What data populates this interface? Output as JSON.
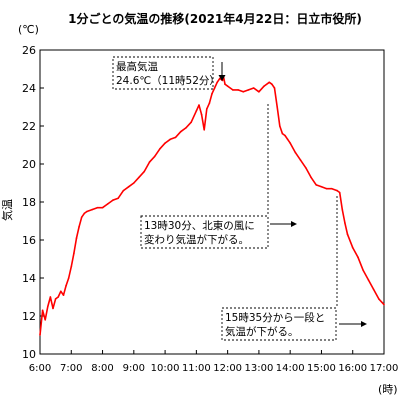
{
  "chart_data": {
    "type": "line",
    "title": "1分ごとの気温の推移(2021年4月22日：日立市役所)",
    "ylabel": "気温",
    "yunit": "(℃)",
    "xunit": "(時)",
    "ylim": [
      10,
      26
    ],
    "yticks": [
      10,
      12,
      14,
      16,
      18,
      20,
      22,
      24,
      26
    ],
    "xlim": [
      6,
      17
    ],
    "xticks": [
      "6:00",
      "7:00",
      "8:00",
      "9:00",
      "10:00",
      "11:00",
      "12:00",
      "13:00",
      "14:00",
      "15:00",
      "16:00",
      "17:00"
    ],
    "grid": false,
    "line_color": "#ff0000",
    "series": [
      {
        "x": [
          "6:00",
          "6:05",
          "6:10",
          "6:15",
          "6:20",
          "6:25",
          "6:30",
          "6:35",
          "6:40",
          "6:45",
          "6:50",
          "6:55",
          "7:00",
          "7:05",
          "7:10",
          "7:15",
          "7:20",
          "7:25",
          "7:30",
          "7:40",
          "7:50",
          "8:00",
          "8:10",
          "8:20",
          "8:30",
          "8:40",
          "8:50",
          "9:00",
          "9:10",
          "9:20",
          "9:30",
          "9:40",
          "9:50",
          "10:00",
          "10:10",
          "10:20",
          "10:30",
          "10:40",
          "10:50",
          "11:00",
          "11:05",
          "11:10",
          "11:15",
          "11:20",
          "11:25",
          "11:30",
          "11:35",
          "11:40",
          "11:45",
          "11:50",
          "11:52",
          "11:55",
          "12:00",
          "12:10",
          "12:20",
          "12:30",
          "12:40",
          "12:50",
          "13:00",
          "13:10",
          "13:20",
          "13:25",
          "13:30",
          "13:35",
          "13:40",
          "13:45",
          "13:50",
          "13:55",
          "14:00",
          "14:10",
          "14:20",
          "14:30",
          "14:40",
          "14:50",
          "15:00",
          "15:10",
          "15:20",
          "15:30",
          "15:35",
          "15:40",
          "15:45",
          "15:50",
          "16:00",
          "16:10",
          "16:20",
          "16:30",
          "16:40",
          "16:50",
          "17:00"
        ],
        "y": [
          11.0,
          12.3,
          11.8,
          12.5,
          13.0,
          12.4,
          12.9,
          13.0,
          13.3,
          13.1,
          13.6,
          14.0,
          14.6,
          15.3,
          16.1,
          16.7,
          17.2,
          17.4,
          17.5,
          17.6,
          17.7,
          17.7,
          17.9,
          18.1,
          18.2,
          18.6,
          18.8,
          19.0,
          19.3,
          19.6,
          20.1,
          20.4,
          20.8,
          21.1,
          21.3,
          21.4,
          21.7,
          21.9,
          22.2,
          22.8,
          23.1,
          22.6,
          21.8,
          22.9,
          23.2,
          23.7,
          24.0,
          24.3,
          24.5,
          24.4,
          24.6,
          24.2,
          24.1,
          23.9,
          23.9,
          23.8,
          23.9,
          24.0,
          23.8,
          24.1,
          24.3,
          24.2,
          24.0,
          23.0,
          22.0,
          21.6,
          21.5,
          21.3,
          21.1,
          20.6,
          20.2,
          19.8,
          19.3,
          18.9,
          18.8,
          18.7,
          18.7,
          18.6,
          18.5,
          17.6,
          16.9,
          16.3,
          15.6,
          15.1,
          14.4,
          13.9,
          13.4,
          12.9,
          12.6
        ]
      }
    ],
    "annotations": [
      {
        "lines": [
          "最高気温",
          "24.6℃（11時52分）"
        ],
        "target": {
          "x": "11:52",
          "y": 24.6
        }
      },
      {
        "lines": [
          "13時30分、北東の風に",
          "変わり気温が下がる。"
        ],
        "target": {
          "x": "13:30",
          "y": 24.0
        }
      },
      {
        "lines": [
          "15時35分から一段と",
          "気温が下がる。"
        ],
        "target": {
          "x": "15:35",
          "y": 18.5
        }
      }
    ]
  }
}
